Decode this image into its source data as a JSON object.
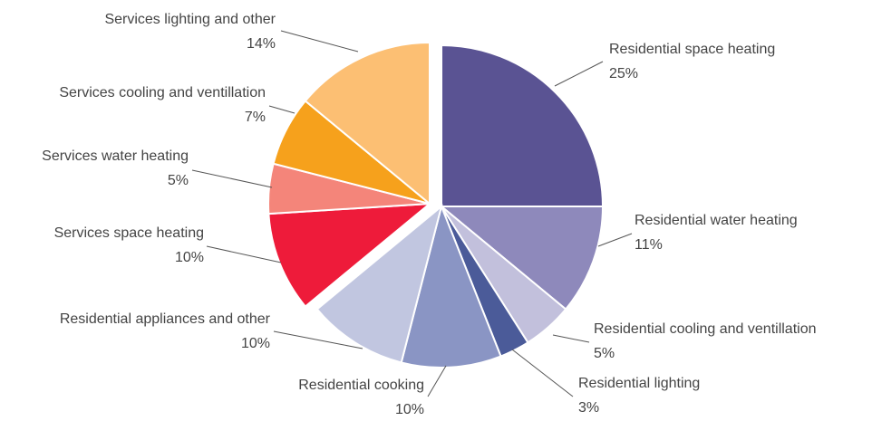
{
  "chart_data": {
    "type": "pie",
    "categories": [
      "Residential space heating",
      "Residential water heating",
      "Residential cooling and ventillation",
      "Residential lighting",
      "Residential cooking",
      "Residential appliances and other",
      "Services space heating",
      "Services water heating",
      "Services cooling and ventillation",
      "Services lighting and other"
    ],
    "values": [
      25,
      11,
      5,
      3,
      10,
      10,
      10,
      5,
      7,
      14
    ],
    "value_labels": [
      "25%",
      "11%",
      "5%",
      "3%",
      "10%",
      "10%",
      "10%",
      "5%",
      "7%",
      "14%"
    ],
    "colors": [
      "#5a5393",
      "#8e89bb",
      "#c2c0dc",
      "#4b5b99",
      "#8a95c4",
      "#c1c6e0",
      "#ee1b3a",
      "#f4857a",
      "#f6a11c",
      "#fcbf73"
    ]
  }
}
